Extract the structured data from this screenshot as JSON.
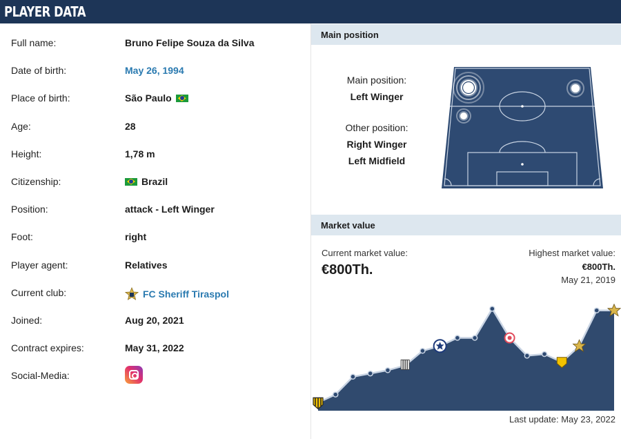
{
  "header": {
    "title": "PLAYER DATA"
  },
  "player": {
    "rows": [
      {
        "label": "Full name:",
        "value": "Bruno Felipe Souza da Silva",
        "type": "text"
      },
      {
        "label": "Date of birth:",
        "value": "May 26, 1994",
        "type": "link"
      },
      {
        "label": "Place of birth:",
        "value": "São Paulo",
        "type": "flag"
      },
      {
        "label": "Age:",
        "value": "28",
        "type": "text"
      },
      {
        "label": "Height:",
        "value": "1,78 m",
        "type": "text"
      },
      {
        "label": "Citizenship:",
        "value": "Brazil",
        "type": "flagfirst"
      },
      {
        "label": "Position:",
        "value": "attack - Left Winger",
        "type": "text"
      },
      {
        "label": "Foot:",
        "value": "right",
        "type": "text"
      },
      {
        "label": "Player agent:",
        "value": "Relatives",
        "type": "text"
      },
      {
        "label": "Current club:",
        "value": "FC Sheriff Tiraspol",
        "type": "club"
      },
      {
        "label": "Joined:",
        "value": "Aug 20, 2021",
        "type": "text"
      },
      {
        "label": "Contract expires:",
        "value": "May 31, 2022",
        "type": "text"
      },
      {
        "label": "Social-Media:",
        "value": "",
        "type": "instagram"
      }
    ]
  },
  "position": {
    "panel_title": "Main position",
    "main_label": "Main position:",
    "main_value": "Left Winger",
    "other_label": "Other position:",
    "other_values": [
      "Right Winger",
      "Left Midfield"
    ],
    "pitch_color": "#2e4a72"
  },
  "market": {
    "panel_title": "Market value",
    "current_label": "Current market value:",
    "current_value": "€800Th.",
    "highest_label": "Highest market value:",
    "highest_value": "€800Th.",
    "highest_date": "May 21, 2019",
    "last_update": "Last update: May 23, 2022",
    "area_color": "#304a6e"
  },
  "chart_data": {
    "type": "area",
    "y": [
      25,
      50,
      105,
      115,
      125,
      140,
      185,
      200,
      225,
      225,
      315,
      225,
      170,
      175,
      150,
      200,
      310,
      310
    ],
    "markers": [
      {
        "index": 0,
        "icon": "club-crest-yellow-black"
      },
      {
        "index": 5,
        "icon": "club-crest-striped"
      },
      {
        "index": 7,
        "icon": "club-crest-star-blue"
      },
      {
        "index": 11,
        "icon": "club-crest-red"
      },
      {
        "index": 14,
        "icon": "club-crest-yellow"
      },
      {
        "index": 15,
        "icon": "club-crest-sheriff-star"
      },
      {
        "index": 17,
        "icon": "club-crest-sheriff-star"
      }
    ]
  }
}
